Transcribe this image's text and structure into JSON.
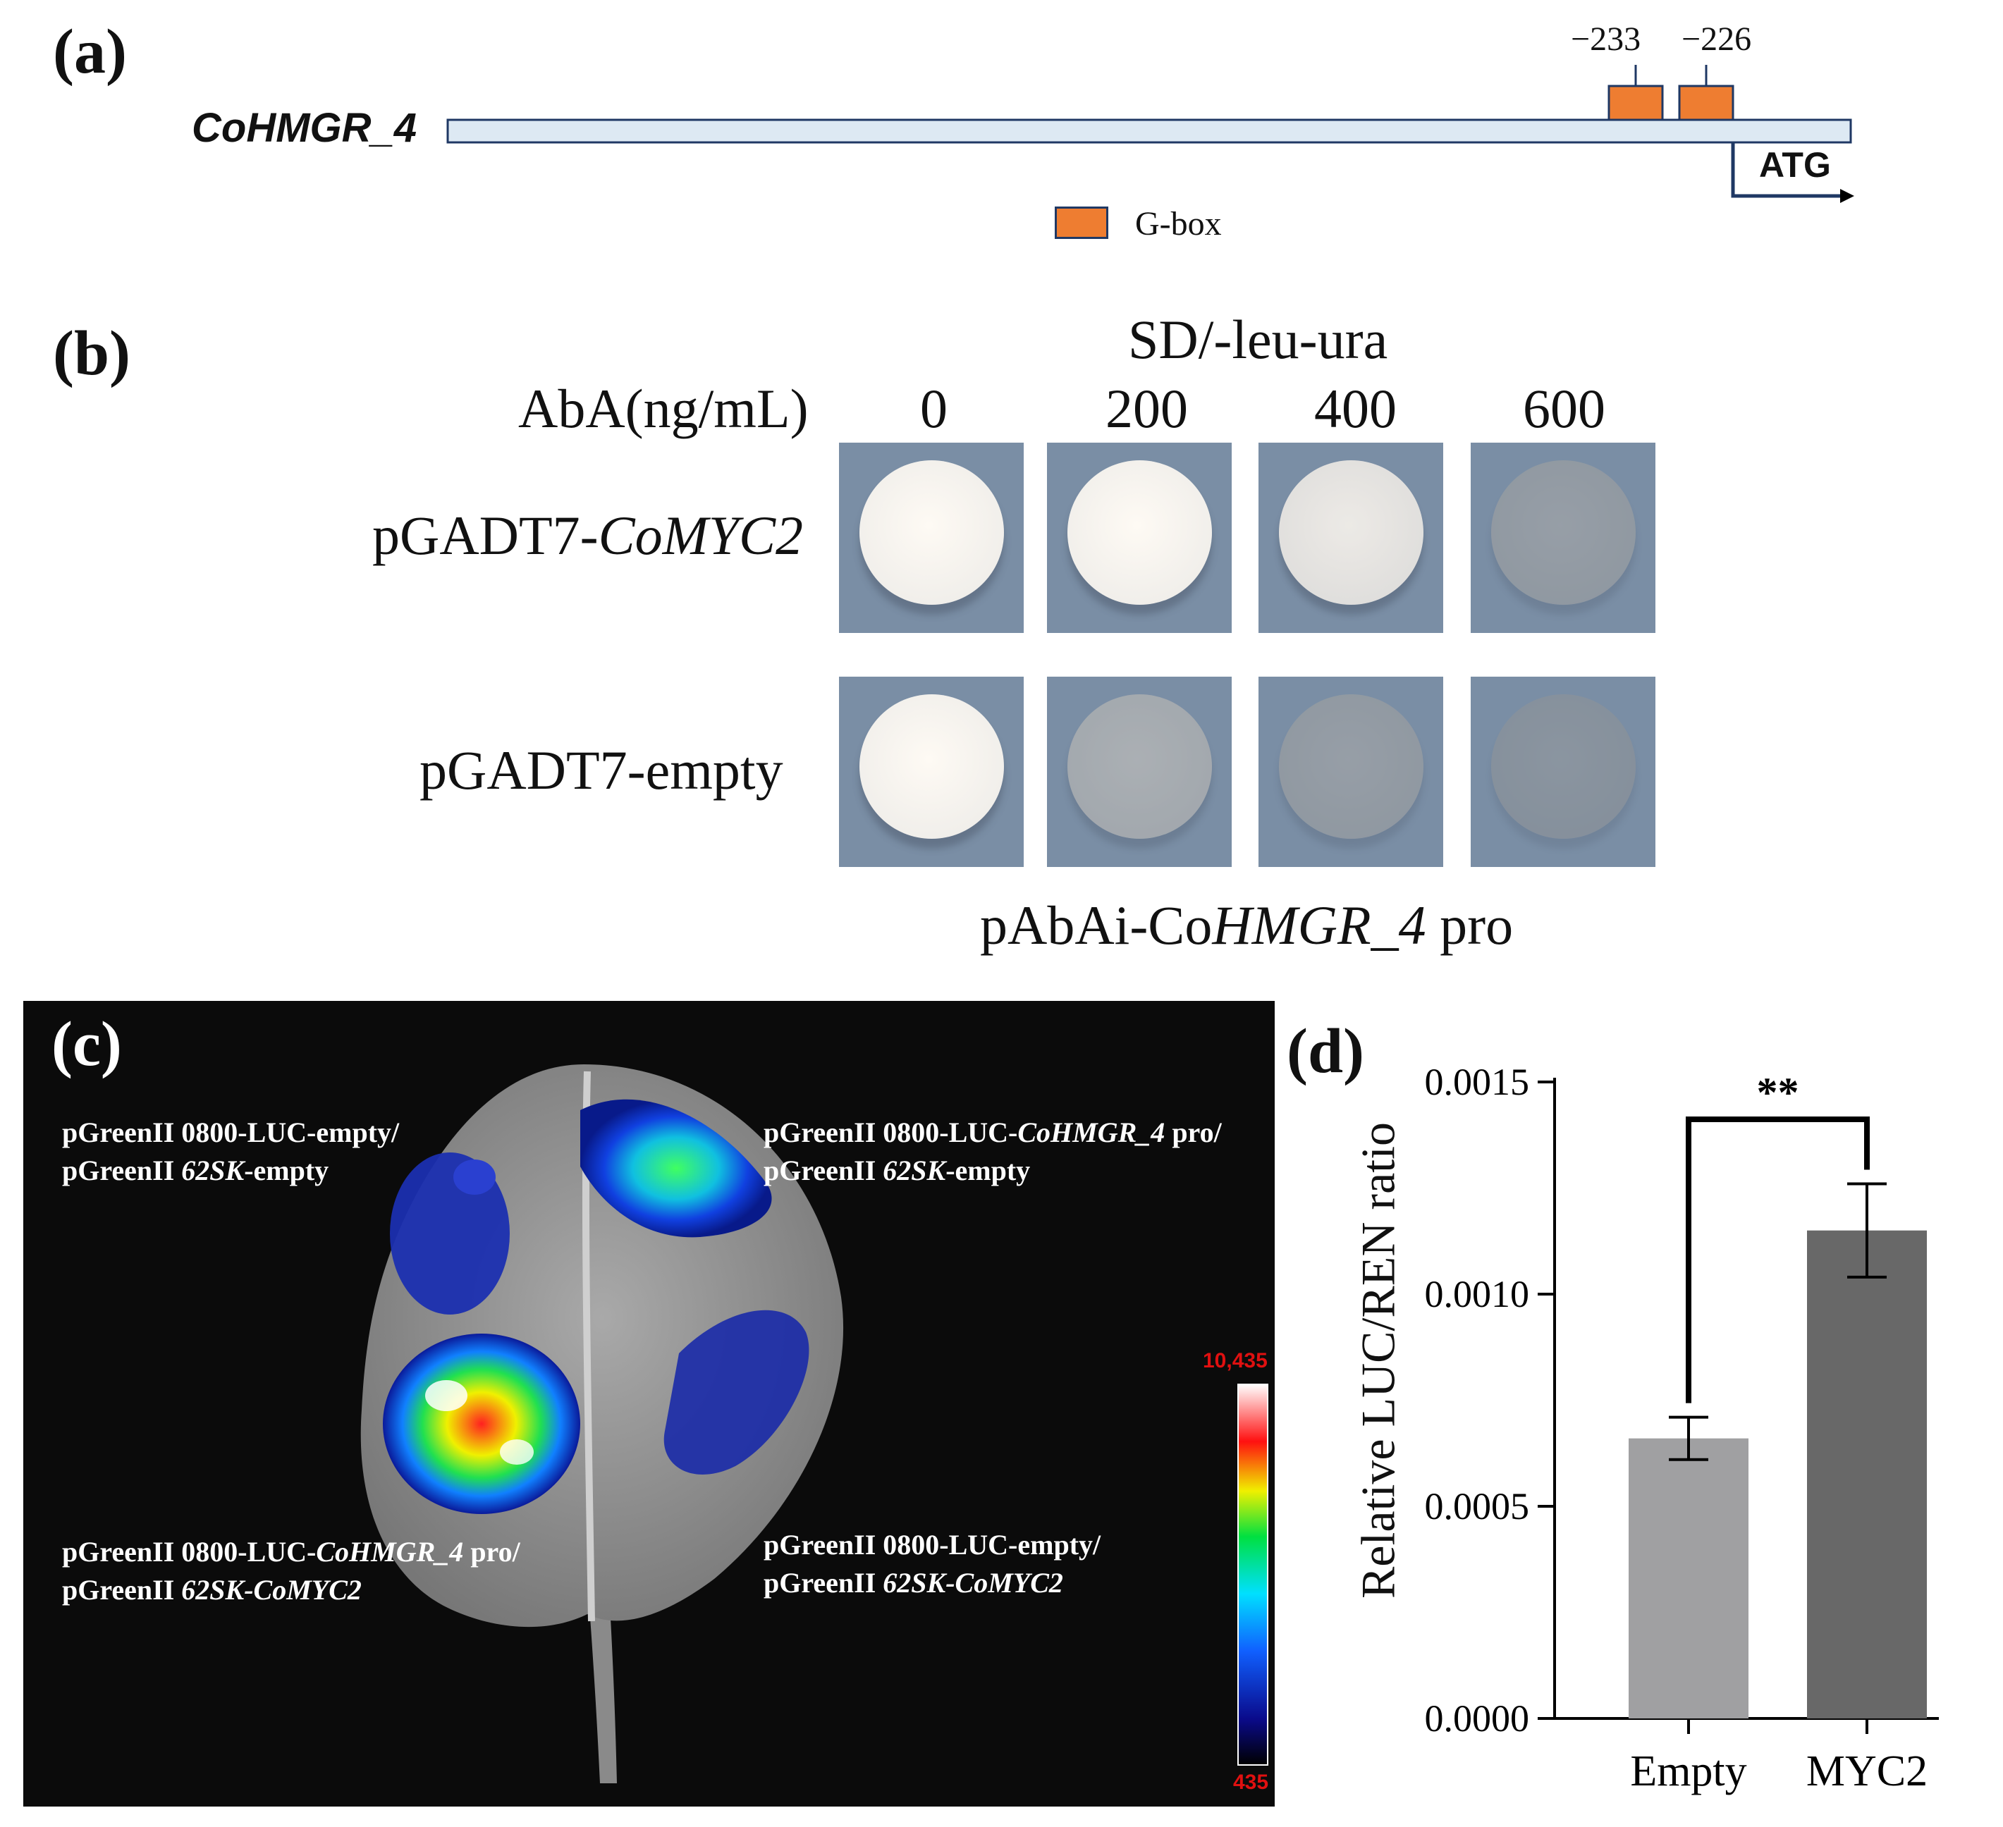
{
  "panels": {
    "a": {
      "label": "(a)",
      "gene": "CoHMGR_4",
      "site1": "−233",
      "site2": "−226",
      "atg": "ATG",
      "legend": "G-box",
      "colors": {
        "gbox": "#ee7d31",
        "promoter": "#dde9f3",
        "outline": "#1f3864"
      }
    },
    "b": {
      "label": "(b)",
      "medium": "SD/-leu-ura",
      "aba_label": "AbA(ng/mL)",
      "concentrations": [
        "0",
        "200",
        "400",
        "600"
      ],
      "row1": {
        "prefix": "pGADT7-",
        "gene": "CoMYC2"
      },
      "row2": "pGADT7-empty",
      "bait": {
        "prefix": "pAbAi-Co",
        "gene": "HMGR_4",
        "suffix": " pro"
      },
      "colony_growth": {
        "row1": [
          1.0,
          1.0,
          0.9,
          0.25
        ],
        "row2": [
          1.0,
          0.45,
          0.25,
          0.1
        ]
      },
      "colors": {
        "plate": "#7a8ea5"
      }
    },
    "c": {
      "label": "(c)",
      "top_left": {
        "l1": "pGreenII 0800-LUC-empty/",
        "l2a": "pGreenII ",
        "l2b": "62SK",
        "l2c": "-empty"
      },
      "top_right": {
        "l1a": "pGreenII 0800-LUC-",
        "l1b": "CoHMGR_4",
        "l1c": " pro/",
        "l2a": "pGreenII ",
        "l2b": "62SK",
        "l2c": "-empty"
      },
      "bottom_left": {
        "l1a": "pGreenII 0800-LUC-",
        "l1b": "CoHMGR_4",
        "l1c": " pro/",
        "l2a": "pGreenII ",
        "l2b": "62SK-CoMYC2"
      },
      "bottom_right": {
        "l1": "pGreenII 0800-LUC-empty/",
        "l2a": "pGreenII ",
        "l2b": "62SK-CoMYC2"
      },
      "scale_max": "10,435",
      "scale_min": "435"
    },
    "d": {
      "label": "(d)"
    }
  },
  "chart_data": {
    "type": "bar",
    "categories": [
      "Empty",
      "MYC2"
    ],
    "values": [
      0.00066,
      0.00115
    ],
    "errors": [
      5e-05,
      0.00011
    ],
    "ylabel": "Relative LUC/REN ratio",
    "xlabel": "",
    "ylim": [
      0,
      0.0015
    ],
    "yticks": [
      "0.0000",
      "0.0005",
      "0.0010",
      "0.0015"
    ],
    "significance": "**",
    "colors": [
      "#a0a0a2",
      "#686868"
    ]
  }
}
